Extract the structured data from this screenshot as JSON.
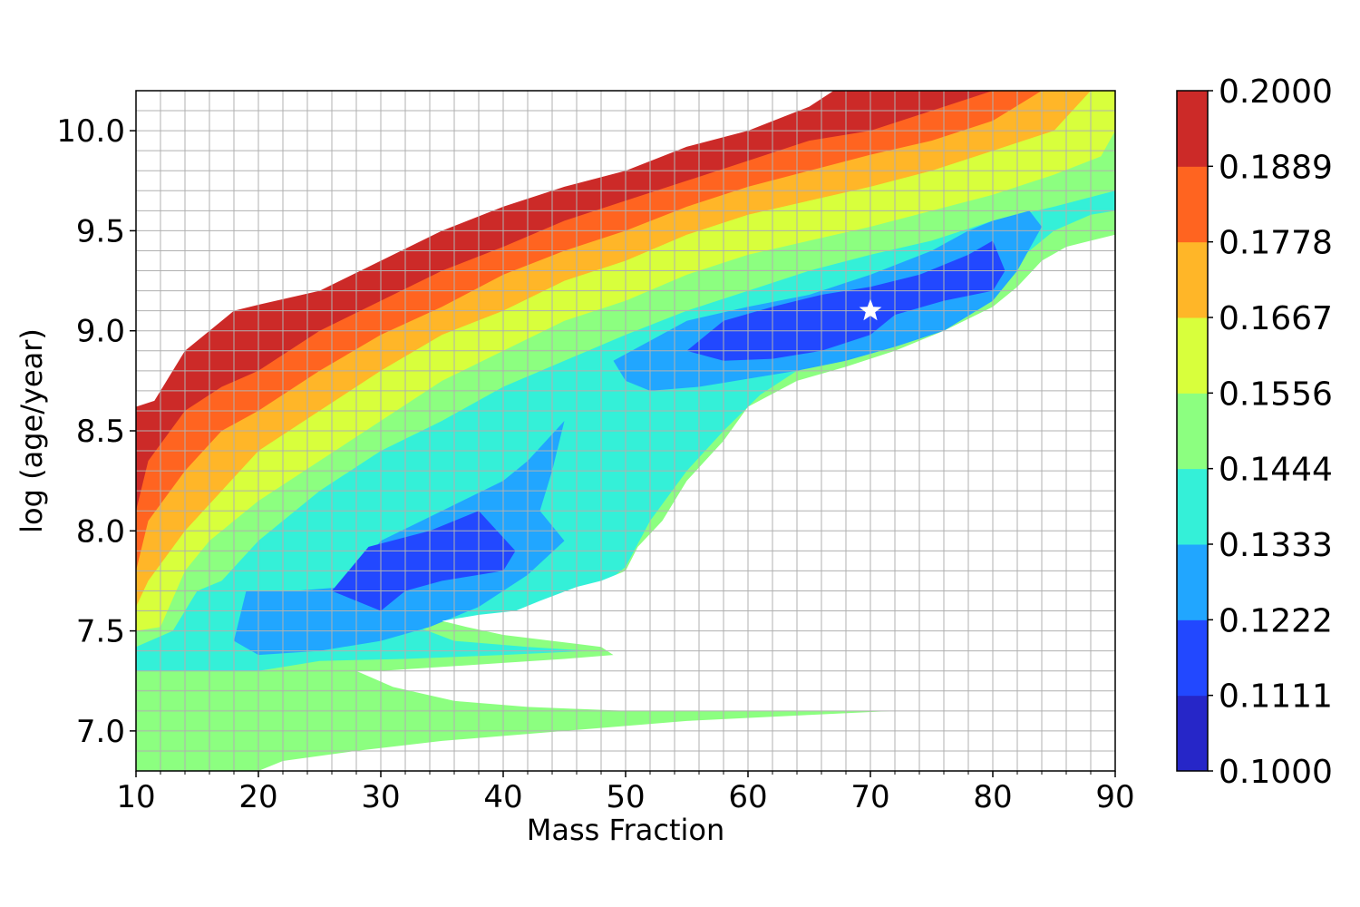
{
  "chart_data": {
    "type": "contour",
    "xlabel": "Mass Fraction",
    "ylabel": "log (age/year)",
    "xlim": [
      10,
      90
    ],
    "ylim": [
      6.8,
      10.2
    ],
    "xticks": [
      "10",
      "20",
      "30",
      "40",
      "50",
      "60",
      "70",
      "80",
      "90"
    ],
    "yticks": [
      "7.0",
      "7.5",
      "8.0",
      "8.5",
      "9.0",
      "9.5",
      "10.0"
    ],
    "grid": true,
    "minor_grid_step": {
      "x": 2,
      "y": 0.1
    },
    "colorbar": {
      "min": 0.1,
      "max": 0.2,
      "levels": [
        "0.1000",
        "0.1111",
        "0.1222",
        "0.1333",
        "0.1444",
        "0.1556",
        "0.1667",
        "0.1778",
        "0.1889",
        "0.2000"
      ],
      "colors": [
        "#2626c8",
        "#2248ff",
        "#21a6ff",
        "#34f0d8",
        "#8cff80",
        "#d8ff3c",
        "#ffb628",
        "#ff6420",
        "#cc2a28"
      ]
    },
    "contour_bands": [
      {
        "level": 8,
        "points": [
          [
            10,
            8.62
          ],
          [
            11.5,
            8.65
          ],
          [
            14,
            8.9
          ],
          [
            17,
            9.05
          ],
          [
            18,
            9.1
          ],
          [
            20,
            9.13
          ],
          [
            25,
            9.2
          ],
          [
            30,
            9.35
          ],
          [
            35,
            9.5
          ],
          [
            40,
            9.62
          ],
          [
            45,
            9.72
          ],
          [
            50,
            9.8
          ],
          [
            55,
            9.92
          ],
          [
            60,
            10.0
          ],
          [
            65,
            10.12
          ],
          [
            67,
            10.2
          ],
          [
            90,
            10.2
          ],
          [
            90,
            6.8
          ],
          [
            10,
            6.8
          ]
        ]
      },
      {
        "level": 7,
        "points": [
          [
            10,
            8.1
          ],
          [
            11,
            8.35
          ],
          [
            14,
            8.6
          ],
          [
            17,
            8.72
          ],
          [
            20,
            8.8
          ],
          [
            25,
            9.0
          ],
          [
            30,
            9.15
          ],
          [
            35,
            9.3
          ],
          [
            40,
            9.42
          ],
          [
            45,
            9.55
          ],
          [
            50,
            9.65
          ],
          [
            55,
            9.75
          ],
          [
            60,
            9.85
          ],
          [
            65,
            9.95
          ],
          [
            70,
            10.0
          ],
          [
            75,
            10.1
          ],
          [
            80,
            10.2
          ],
          [
            90,
            10.2
          ],
          [
            90,
            6.8
          ],
          [
            10,
            6.8
          ]
        ]
      },
      {
        "level": 6,
        "points": [
          [
            10,
            7.8
          ],
          [
            11,
            8.05
          ],
          [
            14,
            8.3
          ],
          [
            17,
            8.5
          ],
          [
            20,
            8.6
          ],
          [
            25,
            8.8
          ],
          [
            30,
            8.98
          ],
          [
            35,
            9.12
          ],
          [
            40,
            9.28
          ],
          [
            45,
            9.4
          ],
          [
            50,
            9.5
          ],
          [
            55,
            9.62
          ],
          [
            60,
            9.72
          ],
          [
            65,
            9.8
          ],
          [
            70,
            9.88
          ],
          [
            75,
            9.95
          ],
          [
            80,
            10.05
          ],
          [
            84,
            10.2
          ],
          [
            90,
            10.2
          ],
          [
            90,
            6.8
          ],
          [
            10,
            6.8
          ]
        ]
      },
      {
        "level": 5,
        "points": [
          [
            10,
            7.62
          ],
          [
            11,
            7.75
          ],
          [
            14,
            8.0
          ],
          [
            17,
            8.2
          ],
          [
            20,
            8.4
          ],
          [
            25,
            8.6
          ],
          [
            30,
            8.8
          ],
          [
            35,
            8.98
          ],
          [
            40,
            9.1
          ],
          [
            45,
            9.25
          ],
          [
            50,
            9.35
          ],
          [
            55,
            9.48
          ],
          [
            60,
            9.58
          ],
          [
            65,
            9.65
          ],
          [
            70,
            9.72
          ],
          [
            75,
            9.8
          ],
          [
            80,
            9.9
          ],
          [
            85,
            10.0
          ],
          [
            88,
            10.2
          ],
          [
            90,
            10.2
          ],
          [
            90,
            6.8
          ],
          [
            10,
            6.8
          ]
        ]
      },
      {
        "level": 4,
        "points": [
          [
            10,
            7.5
          ],
          [
            12,
            7.52
          ],
          [
            14,
            7.8
          ],
          [
            16,
            7.95
          ],
          [
            20,
            8.15
          ],
          [
            25,
            8.35
          ],
          [
            30,
            8.55
          ],
          [
            35,
            8.75
          ],
          [
            40,
            8.9
          ],
          [
            45,
            9.05
          ],
          [
            50,
            9.15
          ],
          [
            55,
            9.28
          ],
          [
            60,
            9.38
          ],
          [
            65,
            9.45
          ],
          [
            70,
            9.52
          ],
          [
            75,
            9.6
          ],
          [
            80,
            9.68
          ],
          [
            85,
            9.78
          ],
          [
            90,
            9.9
          ],
          [
            90,
            6.8
          ],
          [
            10,
            6.8
          ]
        ]
      },
      {
        "level": 3,
        "points": [
          [
            10,
            7.42
          ],
          [
            13,
            7.5
          ],
          [
            15,
            7.7
          ],
          [
            17,
            7.75
          ],
          [
            20,
            7.95
          ],
          [
            25,
            8.2
          ],
          [
            30,
            8.4
          ],
          [
            35,
            8.55
          ],
          [
            40,
            8.72
          ],
          [
            45,
            8.85
          ],
          [
            50,
            8.98
          ],
          [
            55,
            9.1
          ],
          [
            60,
            9.2
          ],
          [
            65,
            9.3
          ],
          [
            70,
            9.38
          ],
          [
            75,
            9.45
          ],
          [
            80,
            9.55
          ],
          [
            85,
            9.62
          ],
          [
            90,
            9.7
          ],
          [
            90,
            9.6
          ],
          [
            88,
            9.58
          ],
          [
            85,
            9.5
          ],
          [
            82,
            9.35
          ],
          [
            80,
            9.2
          ],
          [
            76,
            9.05
          ],
          [
            72,
            8.95
          ],
          [
            68,
            8.88
          ],
          [
            64,
            8.8
          ],
          [
            61,
            8.68
          ],
          [
            58,
            8.5
          ],
          [
            55,
            8.3
          ],
          [
            52,
            8.05
          ],
          [
            50,
            7.82
          ],
          [
            48,
            7.72
          ],
          [
            44,
            7.62
          ],
          [
            40,
            7.58
          ],
          [
            35,
            7.55
          ],
          [
            33,
            7.52
          ],
          [
            36,
            7.45
          ],
          [
            42,
            7.42
          ],
          [
            47,
            7.4
          ],
          [
            40,
            7.38
          ],
          [
            32,
            7.36
          ],
          [
            25,
            7.35
          ],
          [
            20,
            7.3
          ],
          [
            10,
            7.3
          ]
        ]
      },
      {
        "level": 2,
        "points": [
          [
            19,
            7.7
          ],
          [
            23,
            7.7
          ],
          [
            27,
            7.72
          ],
          [
            30,
            7.95
          ],
          [
            35,
            8.1
          ],
          [
            40,
            8.25
          ],
          [
            42,
            8.35
          ],
          [
            45,
            8.55
          ],
          [
            44,
            8.3
          ],
          [
            43,
            8.1
          ],
          [
            45,
            7.95
          ],
          [
            42,
            7.78
          ],
          [
            38,
            7.62
          ],
          [
            34,
            7.52
          ],
          [
            30,
            7.45
          ],
          [
            25,
            7.4
          ],
          [
            20,
            7.38
          ],
          [
            18,
            7.45
          ]
        ]
      },
      {
        "level": 2,
        "points": [
          [
            49,
            8.85
          ],
          [
            52,
            8.95
          ],
          [
            55,
            9.05
          ],
          [
            60,
            9.12
          ],
          [
            65,
            9.18
          ],
          [
            70,
            9.28
          ],
          [
            75,
            9.4
          ],
          [
            78,
            9.5
          ],
          [
            80,
            9.55
          ],
          [
            83,
            9.6
          ],
          [
            84,
            9.52
          ],
          [
            82,
            9.3
          ],
          [
            80,
            9.15
          ],
          [
            76,
            9.0
          ],
          [
            72,
            8.92
          ],
          [
            68,
            8.85
          ],
          [
            64,
            8.8
          ],
          [
            60,
            8.76
          ],
          [
            56,
            8.72
          ],
          [
            52,
            8.7
          ],
          [
            50,
            8.75
          ]
        ]
      },
      {
        "level": 1,
        "points": [
          [
            26,
            7.7
          ],
          [
            29,
            7.92
          ],
          [
            34,
            8.0
          ],
          [
            38,
            8.1
          ],
          [
            41,
            7.9
          ],
          [
            40,
            7.8
          ],
          [
            35,
            7.75
          ],
          [
            32,
            7.7
          ],
          [
            30,
            7.6
          ]
        ]
      },
      {
        "level": 1,
        "points": [
          [
            55,
            8.9
          ],
          [
            58,
            9.05
          ],
          [
            62,
            9.12
          ],
          [
            66,
            9.18
          ],
          [
            70,
            9.22
          ],
          [
            74,
            9.28
          ],
          [
            78,
            9.38
          ],
          [
            80,
            9.45
          ],
          [
            81,
            9.3
          ],
          [
            80,
            9.2
          ],
          [
            76,
            9.15
          ],
          [
            72,
            9.08
          ],
          [
            70,
            8.98
          ],
          [
            66,
            8.9
          ],
          [
            62,
            8.86
          ],
          [
            58,
            8.85
          ]
        ]
      },
      {
        "level": 4,
        "points": [
          [
            88,
            9.78
          ],
          [
            90,
            10.0
          ],
          [
            90,
            9.72
          ]
        ]
      }
    ],
    "blank_regions": [
      [
        [
          90,
          9.48
        ],
        [
          88,
          9.45
        ],
        [
          86,
          9.42
        ],
        [
          84,
          9.35
        ],
        [
          82,
          9.22
        ],
        [
          80,
          9.12
        ],
        [
          76,
          9.0
        ],
        [
          72,
          8.9
        ],
        [
          68,
          8.82
        ],
        [
          64,
          8.75
        ],
        [
          60,
          8.62
        ],
        [
          58,
          8.45
        ],
        [
          55,
          8.25
        ],
        [
          53,
          8.05
        ],
        [
          51,
          7.92
        ],
        [
          50,
          7.8
        ],
        [
          48,
          7.75
        ],
        [
          46,
          7.72
        ],
        [
          43,
          7.65
        ],
        [
          41,
          7.6
        ],
        [
          38,
          7.58
        ],
        [
          35,
          7.55
        ],
        [
          37,
          7.52
        ],
        [
          40,
          7.48
        ],
        [
          44,
          7.45
        ],
        [
          48,
          7.42
        ],
        [
          49,
          7.38
        ],
        [
          45,
          7.36
        ],
        [
          40,
          7.34
        ],
        [
          35,
          7.32
        ],
        [
          30,
          7.3
        ],
        [
          28,
          7.3
        ],
        [
          31,
          7.22
        ],
        [
          36,
          7.15
        ],
        [
          42,
          7.12
        ],
        [
          50,
          7.1
        ],
        [
          60,
          7.1
        ],
        [
          68,
          7.1
        ],
        [
          72,
          7.1
        ],
        [
          65,
          7.08
        ],
        [
          55,
          7.05
        ],
        [
          45,
          7.0
        ],
        [
          35,
          6.95
        ],
        [
          28,
          6.9
        ],
        [
          22,
          6.85
        ],
        [
          20,
          6.8
        ],
        [
          90,
          6.8
        ]
      ]
    ],
    "star_marker": {
      "x": 70,
      "y": 9.1
    }
  }
}
